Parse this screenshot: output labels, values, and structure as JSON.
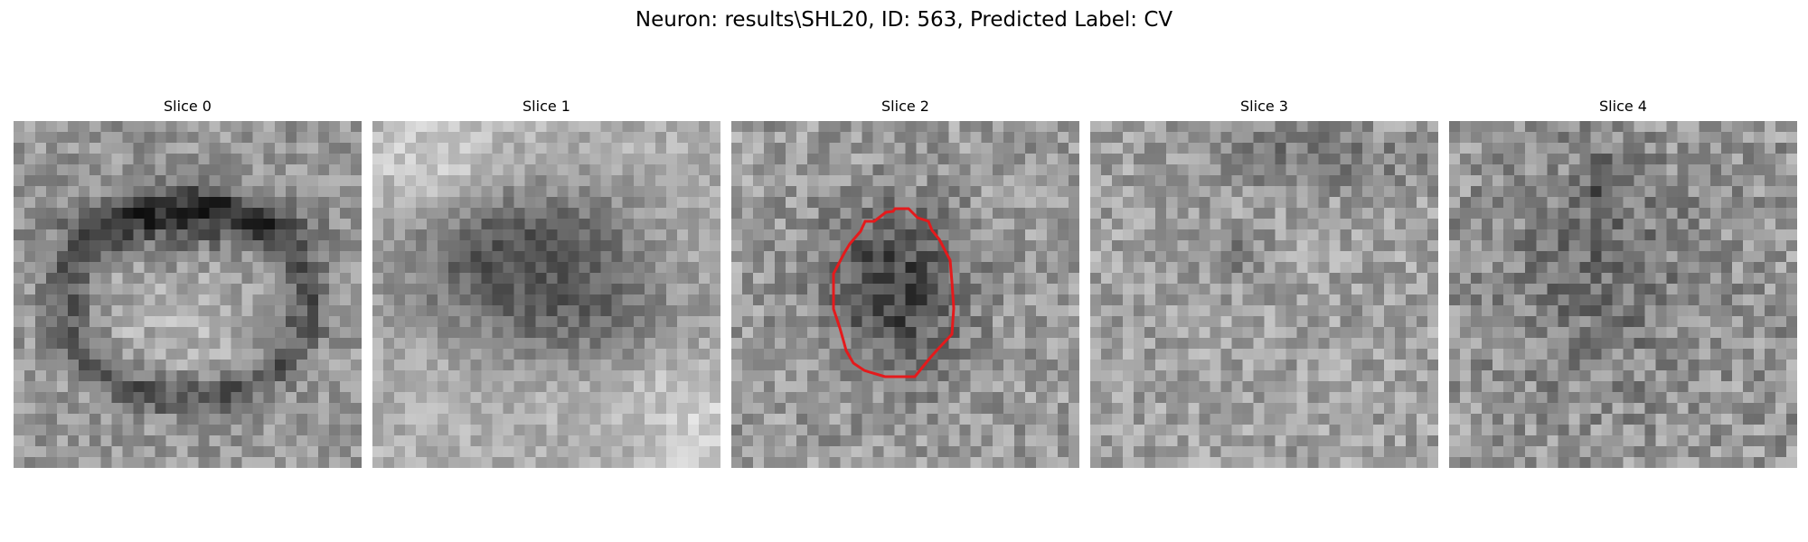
{
  "figure": {
    "title": "Neuron: results\\SHL20, ID: 563, Predicted Label: CV"
  },
  "slices": [
    {
      "title": "Slice 0"
    },
    {
      "title": "Slice 1"
    },
    {
      "title": "Slice 2"
    },
    {
      "title": "Slice 3"
    },
    {
      "title": "Slice 4"
    }
  ],
  "overlay": {
    "slice_index": 2,
    "color": "#e41a1c"
  },
  "colormap": "gray"
}
